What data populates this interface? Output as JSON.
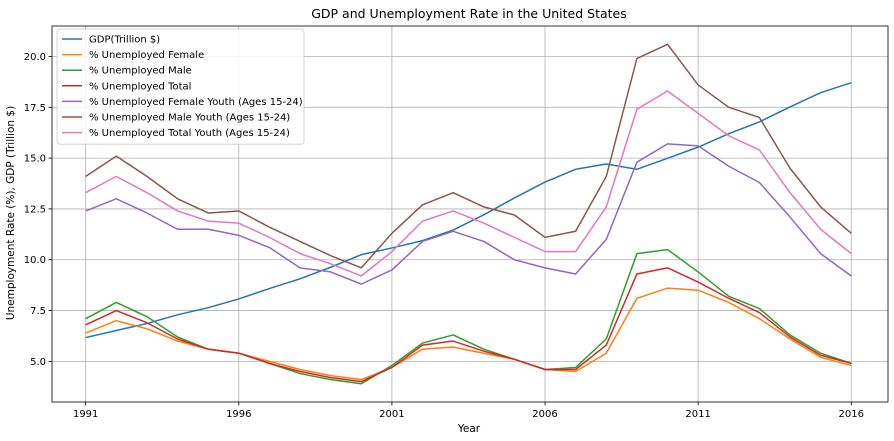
{
  "chart_data": {
    "type": "line",
    "title": "GDP and Unemployment Rate in the United States",
    "xlabel": "Year",
    "ylabel": "Unemployment Rate (%), GDP (Trillion $)",
    "xlim": [
      1989.9,
      2017.2
    ],
    "ylim": [
      3.0,
      21.5
    ],
    "xticks": [
      1991,
      1996,
      2001,
      2006,
      2011,
      2016
    ],
    "yticks": [
      5.0,
      7.5,
      10.0,
      12.5,
      15.0,
      17.5,
      20.0
    ],
    "ytick_labels": [
      "5.0",
      "7.5",
      "10.0",
      "12.5",
      "15.0",
      "17.5",
      "20.0"
    ],
    "grid": true,
    "legend_position": "top-left",
    "x": [
      1991,
      1992,
      1993,
      1994,
      1995,
      1996,
      1997,
      1998,
      1999,
      2000,
      2001,
      2002,
      2003,
      2004,
      2005,
      2006,
      2007,
      2008,
      2009,
      2010,
      2011,
      2012,
      2013,
      2014,
      2015,
      2016
    ],
    "series": [
      {
        "name": "GDP(Trillion $)",
        "color": "#1f77b4",
        "values": [
          6.17,
          6.52,
          6.86,
          7.29,
          7.64,
          8.07,
          8.58,
          9.06,
          9.63,
          10.25,
          10.58,
          10.94,
          11.46,
          12.21,
          13.04,
          13.82,
          14.45,
          14.71,
          14.45,
          14.99,
          15.54,
          16.2,
          16.78,
          17.52,
          18.22,
          18.71
        ]
      },
      {
        "name": "% Unemployed Female",
        "color": "#ff7f0e",
        "values": [
          6.4,
          7.0,
          6.6,
          6.0,
          5.6,
          5.4,
          5.0,
          4.6,
          4.3,
          4.1,
          4.7,
          5.6,
          5.7,
          5.4,
          5.1,
          4.6,
          4.5,
          5.4,
          8.1,
          8.6,
          8.5,
          7.9,
          7.1,
          6.1,
          5.2,
          4.8
        ]
      },
      {
        "name": "% Unemployed Male",
        "color": "#2ca02c",
        "values": [
          7.1,
          7.9,
          7.2,
          6.2,
          5.6,
          5.4,
          4.9,
          4.4,
          4.1,
          3.9,
          4.8,
          5.9,
          6.3,
          5.6,
          5.1,
          4.6,
          4.7,
          6.1,
          10.3,
          10.5,
          9.4,
          8.2,
          7.6,
          6.3,
          5.4,
          4.9
        ]
      },
      {
        "name": "% Unemployed Total",
        "color": "#d62728",
        "values": [
          6.8,
          7.5,
          6.9,
          6.1,
          5.6,
          5.4,
          4.9,
          4.5,
          4.2,
          4.0,
          4.7,
          5.8,
          6.0,
          5.5,
          5.1,
          4.6,
          4.6,
          5.8,
          9.3,
          9.6,
          8.9,
          8.1,
          7.4,
          6.2,
          5.3,
          4.9
        ]
      },
      {
        "name": "% Unemployed Female Youth (Ages 15-24)",
        "color": "#9467bd",
        "values": [
          12.4,
          13.0,
          12.3,
          11.5,
          11.5,
          11.2,
          10.6,
          9.6,
          9.4,
          8.8,
          9.5,
          10.9,
          11.4,
          10.9,
          10.0,
          9.6,
          9.3,
          11.0,
          14.8,
          15.7,
          15.6,
          14.6,
          13.8,
          12.1,
          10.3,
          9.2
        ]
      },
      {
        "name": "% Unemployed Male Youth (Ages 15-24)",
        "color": "#8c564b",
        "values": [
          14.1,
          15.1,
          14.1,
          13.0,
          12.3,
          12.4,
          11.6,
          10.9,
          10.2,
          9.6,
          11.3,
          12.7,
          13.3,
          12.6,
          12.2,
          11.1,
          11.4,
          14.1,
          19.9,
          20.6,
          18.6,
          17.5,
          17.0,
          14.5,
          12.6,
          11.3
        ]
      },
      {
        "name": "% Unemployed Total Youth (Ages 15-24)",
        "color": "#e377c2",
        "values": [
          13.3,
          14.1,
          13.3,
          12.4,
          11.9,
          11.8,
          11.1,
          10.3,
          9.8,
          9.2,
          10.4,
          11.9,
          12.4,
          11.8,
          11.1,
          10.4,
          10.4,
          12.6,
          17.4,
          18.3,
          17.2,
          16.1,
          15.4,
          13.3,
          11.5,
          10.3
        ]
      }
    ]
  }
}
